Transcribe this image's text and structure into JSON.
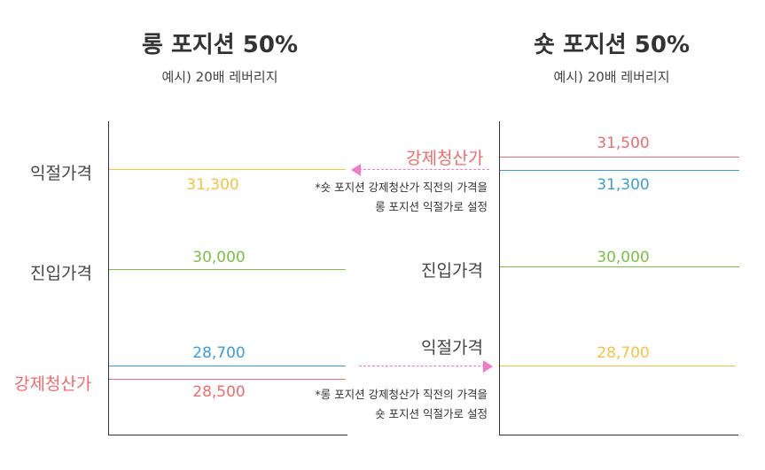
{
  "long": {
    "title": "롱 포지션 50%",
    "subtitle": "예시) 20배 레버리지",
    "take_profit_label": "익절가격",
    "take_profit_price": "31,300",
    "entry_label": "진입가격",
    "entry_price": "30,000",
    "stop_price": "28,700",
    "liquidation_label": "강제청산가",
    "liquidation_price": "28,500",
    "note_line1": "*롱 포지션 강제청산가 직전의 가격을",
    "note_line2": "숏 포지션 익절가로 설정"
  },
  "short": {
    "title": "숏 포지션 50%",
    "subtitle": "예시) 20배 레버리지",
    "liquidation_label": "강제청산가",
    "liquidation_price": "31,500",
    "stop_price": "31,300",
    "entry_label": "진입가격",
    "entry_price": "30,000",
    "take_profit_label": "익절가격",
    "take_profit_price": "28,700",
    "note_line1": "*숏 포지션 강제청산가 직전의 가격을",
    "note_line2": "롱 포지션 익절가로 설정"
  },
  "colors": {
    "yellow": "#f5c343",
    "green": "#7cc142",
    "blue": "#3a9fd8",
    "red": "#f06b6b",
    "pink": "#f07ac8"
  }
}
